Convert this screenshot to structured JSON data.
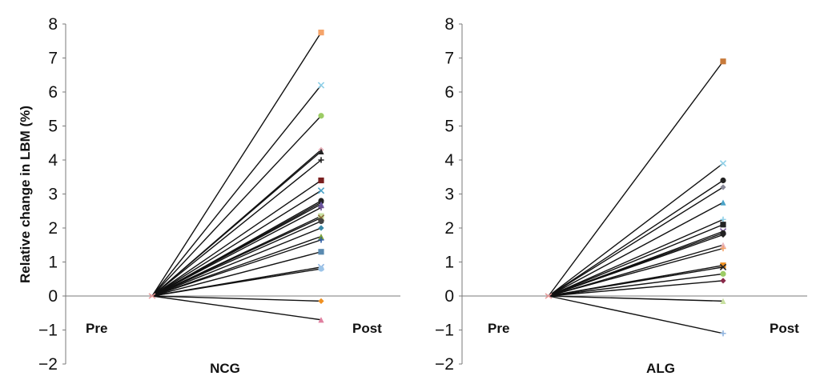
{
  "chart_data": [
    {
      "type": "line",
      "group": "NCG",
      "ylabel": "Relative change in LBM (%)",
      "ylim": [
        -2,
        8
      ],
      "yticks": [
        -2,
        -1,
        0,
        1,
        2,
        3,
        4,
        5,
        6,
        7,
        8
      ],
      "ytick_labels": [
        "−2",
        "−1",
        "0",
        "1",
        "2",
        "3",
        "4",
        "5",
        "6",
        "7",
        "8"
      ],
      "categories": [
        "Pre",
        "Post"
      ],
      "pre_value": 0,
      "post_values": [
        7.75,
        6.2,
        5.3,
        4.3,
        4.25,
        4.0,
        3.4,
        3.1,
        2.8,
        2.75,
        2.7,
        2.6,
        2.35,
        2.3,
        2.2,
        2.0,
        1.75,
        1.65,
        1.3,
        0.85,
        0.8,
        -0.15,
        -0.7
      ],
      "marker_colors": [
        "#f5a46a",
        "#8fd0e8",
        "#9ccc65",
        "#e8b4bc",
        "#222222",
        "#222222",
        "#7a1f1f",
        "#4aa3c8",
        "#222222",
        "#222222",
        "#6b5aa6",
        "#6b4f8f",
        "#c8e0a0",
        "#8a6a3a",
        "#444444",
        "#3a8aa8",
        "#7aa03a",
        "#2a5aa0",
        "#5a8ab0",
        "#8fb4e0",
        "#9cc4e8",
        "#f09020",
        "#e080a0"
      ]
    },
    {
      "type": "line",
      "group": "ALG",
      "ylabel": "",
      "ylim": [
        -2,
        8
      ],
      "yticks": [
        -2,
        -1,
        0,
        1,
        2,
        3,
        4,
        5,
        6,
        7,
        8
      ],
      "ytick_labels": [
        "−2",
        "−1",
        "0",
        "1",
        "2",
        "3",
        "4",
        "5",
        "6",
        "7",
        "8"
      ],
      "categories": [
        "Pre",
        "Post"
      ],
      "pre_value": 0,
      "post_values": [
        6.9,
        3.9,
        3.4,
        3.2,
        2.75,
        2.25,
        2.1,
        1.9,
        1.85,
        1.8,
        1.5,
        1.4,
        0.9,
        0.85,
        0.65,
        0.45,
        -0.15,
        -1.1
      ],
      "marker_colors": [
        "#c87a3a",
        "#8fd0e8",
        "#222222",
        "#8a8a9a",
        "#4aa3c8",
        "#8fd0e8",
        "#222222",
        "#7a5aa0",
        "#222222",
        "#222222",
        "#e8b4bc",
        "#f5a46a",
        "#f09020",
        "#222222",
        "#9ccc65",
        "#8a2a4a",
        "#c8e0a0",
        "#8fb4e0"
      ]
    }
  ]
}
